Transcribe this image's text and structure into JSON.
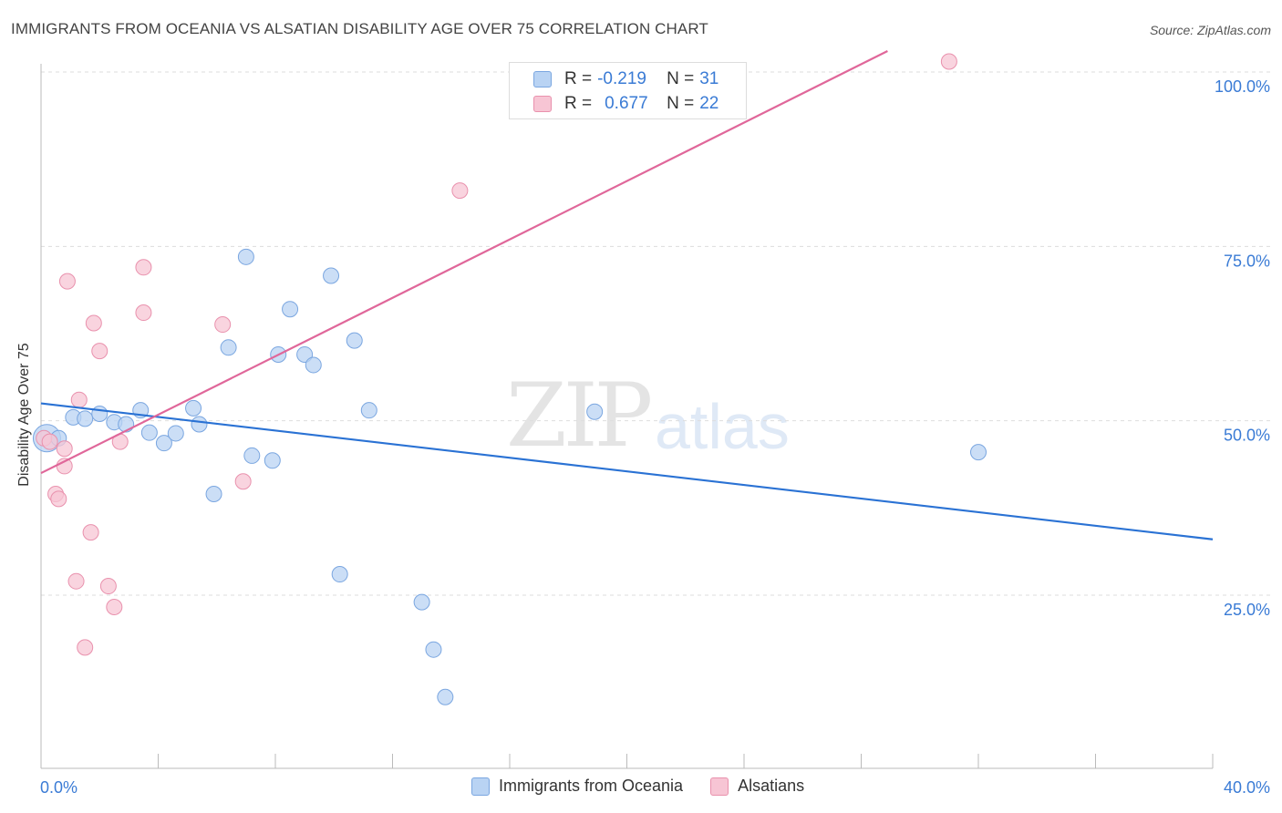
{
  "title": "IMMIGRANTS FROM OCEANIA VS ALSATIAN DISABILITY AGE OVER 75 CORRELATION CHART",
  "source": "Source: ZipAtlas.com",
  "watermark": {
    "zip": "ZIP",
    "atlas": "atlas"
  },
  "legend": {
    "rows": [
      {
        "r_label": "R =",
        "r_value": "-0.219",
        "n_label": "N =",
        "n_value": "31"
      },
      {
        "r_label": "R =",
        "r_value": "0.677",
        "n_label": "N =",
        "n_value": "22"
      }
    ]
  },
  "bottom_legend": [
    "Immigrants from Oceania",
    "Alsatians"
  ],
  "colors": {
    "blue_fill": "#b9d3f3",
    "blue_stroke": "#7aa6e0",
    "blue_line": "#2a72d4",
    "pink_fill": "#f7c5d4",
    "pink_stroke": "#e991ad",
    "pink_line": "#e0679a",
    "axis_text": "#3a7bd5",
    "grid": "#dddddd"
  },
  "chart_data": {
    "type": "scatter",
    "title": "IMMIGRANTS FROM OCEANIA VS ALSATIAN DISABILITY AGE OVER 75 CORRELATION CHART",
    "xlabel": "",
    "ylabel": "Disability Age Over 75",
    "xlim": [
      0,
      40
    ],
    "ylim": [
      0,
      105
    ],
    "x_tick_labels": [
      "0.0%",
      "40.0%"
    ],
    "y_tick_labels": [
      "25.0%",
      "50.0%",
      "75.0%",
      "100.0%"
    ],
    "y_ticks": [
      25,
      50,
      75,
      100
    ],
    "grid": true,
    "series": [
      {
        "name": "Immigrants from Oceania",
        "points": [
          [
            0.2,
            47.5
          ],
          [
            0.6,
            47.5
          ],
          [
            1.1,
            50.5
          ],
          [
            1.5,
            50.3
          ],
          [
            2.0,
            51.0
          ],
          [
            2.5,
            49.8
          ],
          [
            2.9,
            49.5
          ],
          [
            3.4,
            51.5
          ],
          [
            3.7,
            48.3
          ],
          [
            4.2,
            46.8
          ],
          [
            4.6,
            48.2
          ],
          [
            5.2,
            51.8
          ],
          [
            5.4,
            49.5
          ],
          [
            5.9,
            39.5
          ],
          [
            6.4,
            60.5
          ],
          [
            7.0,
            73.5
          ],
          [
            7.2,
            45.0
          ],
          [
            7.9,
            44.3
          ],
          [
            8.1,
            59.5
          ],
          [
            8.5,
            66.0
          ],
          [
            9.0,
            59.5
          ],
          [
            9.3,
            58.0
          ],
          [
            9.9,
            70.8
          ],
          [
            10.2,
            28.0
          ],
          [
            10.7,
            61.5
          ],
          [
            11.2,
            51.5
          ],
          [
            13.0,
            24.0
          ],
          [
            13.4,
            17.2
          ],
          [
            13.8,
            10.4
          ],
          [
            18.9,
            51.3
          ],
          [
            32.0,
            45.5
          ]
        ],
        "trend": [
          [
            0,
            52.5
          ],
          [
            40,
            33.0
          ]
        ]
      },
      {
        "name": "Alsatians",
        "points": [
          [
            0.1,
            47.5
          ],
          [
            0.3,
            47.0
          ],
          [
            0.5,
            39.5
          ],
          [
            0.6,
            38.8
          ],
          [
            0.8,
            46.0
          ],
          [
            0.8,
            43.5
          ],
          [
            0.9,
            70.0
          ],
          [
            1.2,
            27.0
          ],
          [
            1.3,
            53.0
          ],
          [
            1.5,
            17.5
          ],
          [
            1.7,
            34.0
          ],
          [
            1.8,
            64.0
          ],
          [
            2.0,
            60.0
          ],
          [
            2.3,
            26.3
          ],
          [
            2.5,
            23.3
          ],
          [
            2.7,
            47.0
          ],
          [
            3.5,
            65.5
          ],
          [
            3.5,
            72.0
          ],
          [
            6.2,
            63.8
          ],
          [
            6.9,
            41.3
          ],
          [
            14.3,
            83.0
          ],
          [
            31.0,
            101.5
          ]
        ],
        "trend": [
          [
            0,
            42.5
          ],
          [
            28.9,
            103.0
          ]
        ]
      }
    ]
  }
}
